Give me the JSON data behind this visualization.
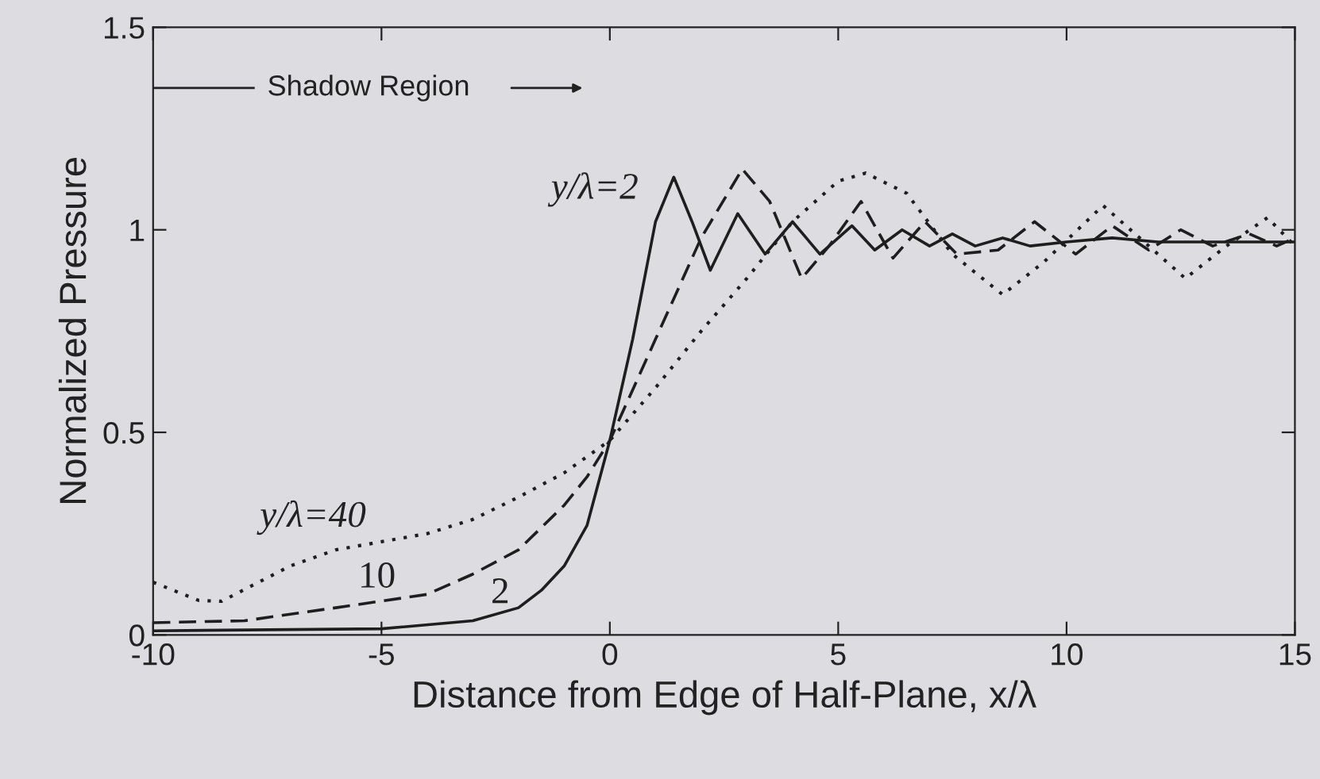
{
  "chart_data": {
    "type": "line",
    "xlabel": "Distance from Edge of Half-Plane, x/λ",
    "ylabel": "Normalized Pressure",
    "xlim": [
      -10,
      15
    ],
    "xticks": [
      -10,
      -5,
      0,
      5,
      10,
      15
    ],
    "ylim": [
      0,
      1.5
    ],
    "yticks": [
      0,
      0.5,
      1,
      1.5
    ],
    "grid": false,
    "legend": false,
    "marker": "none",
    "series": [
      {
        "color": "#1e1e1e",
        "line_style": "solid",
        "x": [
          -10,
          -5,
          -3,
          -2,
          -1.5,
          -1,
          -0.5,
          0,
          0.5,
          1,
          1.4,
          1.8,
          2.2,
          2.8,
          3.4,
          4.0,
          4.6,
          5.3,
          5.8,
          6.4,
          7,
          7.5,
          8,
          8.6,
          9.2,
          10,
          11,
          12,
          13,
          14,
          15
        ],
        "values": [
          0.01,
          0.015,
          0.035,
          0.067,
          0.11,
          0.17,
          0.27,
          0.48,
          0.73,
          1.02,
          1.13,
          1.02,
          0.9,
          1.04,
          0.94,
          1.02,
          0.94,
          1.01,
          0.95,
          1.0,
          0.96,
          0.99,
          0.96,
          0.98,
          0.96,
          0.97,
          0.98,
          0.97,
          0.97,
          0.97,
          0.97
        ]
      },
      {
        "color": "#1e1e1e",
        "line_style": "dashed",
        "x": [
          -10,
          -8,
          -6,
          -4,
          -3,
          -2,
          -1,
          -0.5,
          0,
          1,
          2,
          2.9,
          3.5,
          4.2,
          4.8,
          5.5,
          6.2,
          6.9,
          7.6,
          8.5,
          9.3,
          10.2,
          11,
          11.8,
          12.5,
          13.2,
          14,
          14.6,
          15
        ],
        "values": [
          0.03,
          0.035,
          0.067,
          0.1,
          0.15,
          0.21,
          0.32,
          0.39,
          0.48,
          0.73,
          0.98,
          1.15,
          1.07,
          0.88,
          0.96,
          1.07,
          0.93,
          1.02,
          0.94,
          0.95,
          1.02,
          0.94,
          1.01,
          0.95,
          1.0,
          0.96,
          0.99,
          0.96,
          0.98
        ]
      },
      {
        "color": "#1e1e1e",
        "line_style": "dotted",
        "x": [
          -10,
          -9,
          -8.5,
          -7,
          -6,
          -5,
          -4,
          -3,
          -2,
          -1,
          0,
          1,
          2,
          3,
          4,
          5,
          5.6,
          6.5,
          7.5,
          8.6,
          9.5,
          10.8,
          11.8,
          12.6,
          13.5,
          14.4,
          15
        ],
        "values": [
          0.13,
          0.085,
          0.083,
          0.17,
          0.21,
          0.23,
          0.25,
          0.285,
          0.34,
          0.4,
          0.48,
          0.61,
          0.75,
          0.88,
          1.02,
          1.12,
          1.14,
          1.09,
          0.94,
          0.84,
          0.92,
          1.06,
          0.96,
          0.88,
          0.96,
          1.03,
          0.96
        ]
      }
    ],
    "annotations": [
      "Shadow Region",
      "y/λ=2",
      "y/λ=40",
      "10",
      "2"
    ]
  }
}
